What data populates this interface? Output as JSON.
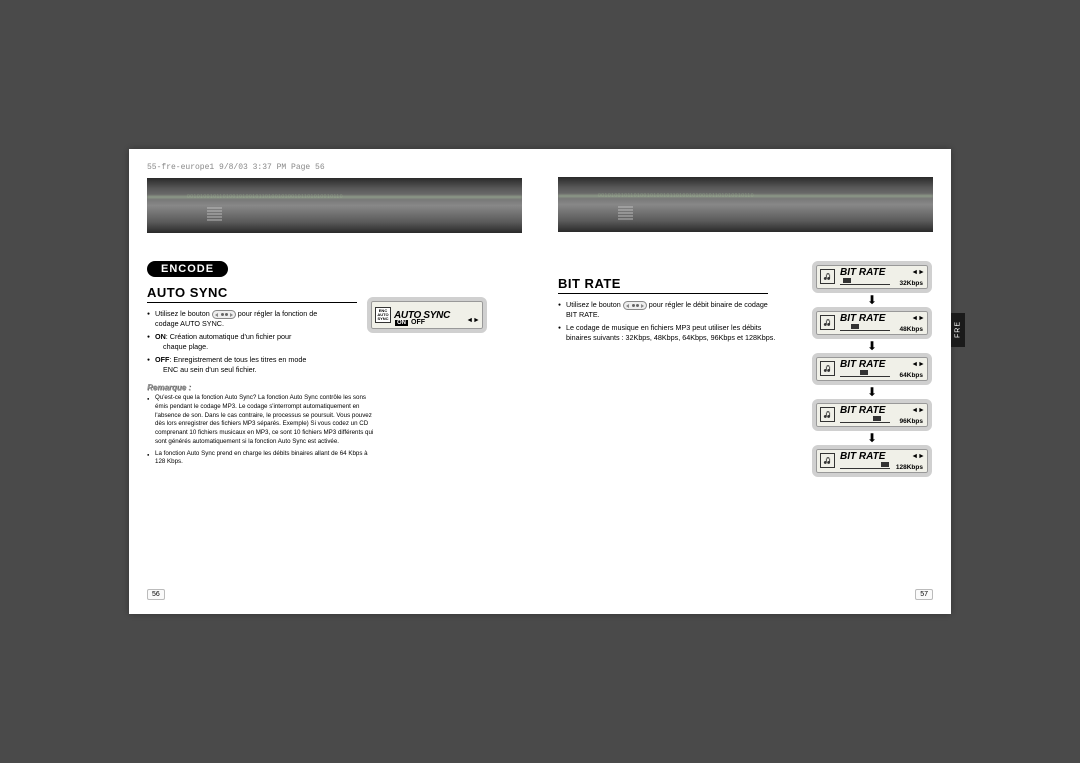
{
  "print_header": "55-fre-europe1  9/8/03  3:37 PM  Page 56",
  "left": {
    "badge": "ENCODE",
    "section": "AUTO SYNC",
    "bullets": [
      {
        "pre": "Utilisez le bouton ",
        "post": " pour régler la fonction de codage AUTO SYNC.",
        "hasBtn": true
      },
      {
        "pre": "",
        "post": "ON: Création automatique d'un fichier pour chaque plage.",
        "bold": "ON"
      },
      {
        "pre": "",
        "post": "OFF: Enregistrement de tous les titres en mode ENC au sein d'un seul fichier.",
        "bold": "OFF"
      }
    ],
    "remarque_label": "Remarque :",
    "remarques": [
      "Qu'est-ce que la fonction Auto Sync?\nLa fonction Auto Sync contrôle les sons émis pendant le codage MP3. Le codage s'interrompt automatiquement en l'absence de son. Dans le cas contraire, le processus se poursuit. Vous pouvez dès lors enregistrer des fichiers MP3 séparés.\nExemple) Si vous codez un CD comprenant 10 fichiers musicaux en MP3, ce sont 10 fichiers MP3 différents qui sont générés automatiquement si la fonction Auto Sync est activée.",
      "La fonction Auto Sync prend en charge les débits binaires allant de 64 Kbps à 128 Kbps."
    ],
    "lcd": {
      "icon_lines": [
        "ENC",
        "AUTO",
        "SYNC"
      ],
      "title": "AUTO SYNC",
      "on": "ON",
      "off": "OFF"
    },
    "page_num": "56"
  },
  "right": {
    "section": "BIT RATE",
    "bullets": [
      {
        "pre": "Utilisez le bouton ",
        "post": " pour régler le débit binaire de codage BIT RATE.",
        "hasBtn": true
      },
      {
        "pre": "",
        "post": "Le codage de musique en fichiers MP3 peut utiliser les débits binaires suivants : 32Kbps, 48Kbps, 64Kbps, 96Kbps et 128Kbps."
      }
    ],
    "bitrates": [
      "32Kbps",
      "48Kbps",
      "64Kbps",
      "96Kbps",
      "128Kbps"
    ],
    "fills": [
      5,
      22,
      40,
      65,
      82
    ],
    "lcd_title": "BIT RATE",
    "page_num": "57",
    "tab": "FRE"
  },
  "colors": {
    "page_bg": "#4a4a4a",
    "paper": "#ffffff",
    "lcd_border": "#d0d0d0",
    "lcd_bg": "#f0f0e8"
  }
}
